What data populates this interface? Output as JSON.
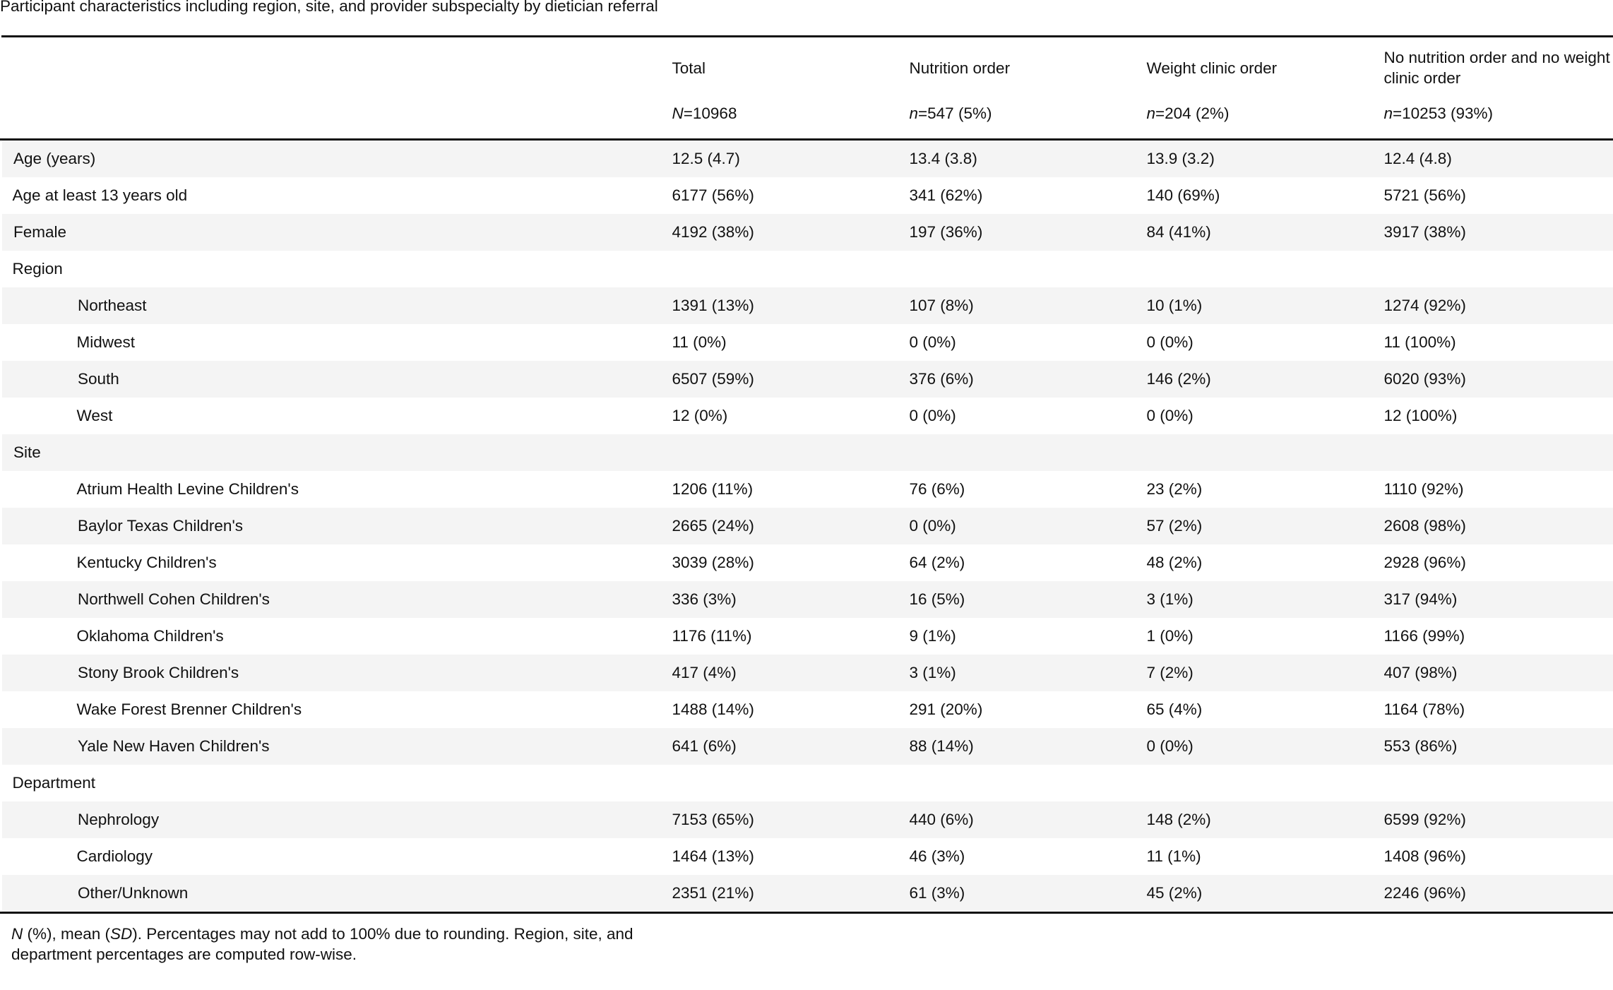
{
  "caption": "Participant characteristics including region, site, and provider subspecialty by dietician referral",
  "columns": [
    {
      "label": "Total",
      "n_prefix": "N",
      "n_value": "=10968"
    },
    {
      "label": "Nutrition order",
      "n_prefix": "n",
      "n_value": "=547 (5%)"
    },
    {
      "label": "Weight clinic order",
      "n_prefix": "n",
      "n_value": "=204 (2%)"
    },
    {
      "label": "No nutrition order and no weight clinic order",
      "n_prefix": "n",
      "n_value": "=10253 (93%)"
    }
  ],
  "rows": [
    {
      "label": "Age (years)",
      "indent": false,
      "values": [
        "12.5 (4.7)",
        "13.4 (3.8)",
        "13.9 (3.2)",
        "12.4 (4.8)"
      ]
    },
    {
      "label": "Age at least 13 years old",
      "indent": false,
      "values": [
        "6177 (56%)",
        "341 (62%)",
        "140 (69%)",
        "5721 (56%)"
      ]
    },
    {
      "label": "Female",
      "indent": false,
      "values": [
        "4192 (38%)",
        "197 (36%)",
        "84 (41%)",
        "3917 (38%)"
      ]
    },
    {
      "label": "Region",
      "indent": false,
      "values": [
        "",
        "",
        "",
        ""
      ]
    },
    {
      "label": "Northeast",
      "indent": true,
      "values": [
        "1391 (13%)",
        "107 (8%)",
        "10 (1%)",
        "1274 (92%)"
      ]
    },
    {
      "label": "Midwest",
      "indent": true,
      "values": [
        "11 (0%)",
        "0 (0%)",
        "0 (0%)",
        "11 (100%)"
      ]
    },
    {
      "label": "South",
      "indent": true,
      "values": [
        "6507 (59%)",
        "376 (6%)",
        "146 (2%)",
        "6020 (93%)"
      ]
    },
    {
      "label": "West",
      "indent": true,
      "values": [
        "12 (0%)",
        "0 (0%)",
        "0 (0%)",
        "12 (100%)"
      ]
    },
    {
      "label": "Site",
      "indent": false,
      "values": [
        "",
        "",
        "",
        ""
      ]
    },
    {
      "label": "Atrium Health Levine Children's",
      "indent": true,
      "values": [
        "1206 (11%)",
        "76 (6%)",
        "23 (2%)",
        "1110 (92%)"
      ]
    },
    {
      "label": "Baylor Texas Children's",
      "indent": true,
      "values": [
        "2665 (24%)",
        "0 (0%)",
        "57 (2%)",
        "2608 (98%)"
      ]
    },
    {
      "label": "Kentucky Children's",
      "indent": true,
      "values": [
        "3039 (28%)",
        "64 (2%)",
        "48 (2%)",
        "2928 (96%)"
      ]
    },
    {
      "label": "Northwell Cohen Children's",
      "indent": true,
      "values": [
        "336 (3%)",
        "16 (5%)",
        "3 (1%)",
        "317 (94%)"
      ]
    },
    {
      "label": "Oklahoma Children's",
      "indent": true,
      "values": [
        "1176 (11%)",
        "9 (1%)",
        "1 (0%)",
        "1166 (99%)"
      ]
    },
    {
      "label": "Stony Brook Children's",
      "indent": true,
      "values": [
        "417 (4%)",
        "3 (1%)",
        "7 (2%)",
        "407 (98%)"
      ]
    },
    {
      "label": "Wake Forest Brenner Children's",
      "indent": true,
      "values": [
        "1488 (14%)",
        "291 (20%)",
        "65 (4%)",
        "1164 (78%)"
      ]
    },
    {
      "label": "Yale New Haven Children's",
      "indent": true,
      "values": [
        "641 (6%)",
        "88 (14%)",
        "0 (0%)",
        "553 (86%)"
      ]
    },
    {
      "label": "Department",
      "indent": false,
      "values": [
        "",
        "",
        "",
        ""
      ]
    },
    {
      "label": "Nephrology",
      "indent": true,
      "values": [
        "7153 (65%)",
        "440 (6%)",
        "148 (2%)",
        "6599 (92%)"
      ]
    },
    {
      "label": "Cardiology",
      "indent": true,
      "values": [
        "1464 (13%)",
        "46 (3%)",
        "11 (1%)",
        "1408 (96%)"
      ]
    },
    {
      "label": "Other/Unknown",
      "indent": true,
      "values": [
        "2351 (21%)",
        "61 (3%)",
        "45 (2%)",
        "2246 (96%)"
      ]
    }
  ],
  "footnote": {
    "n_symbol": "N",
    "part1": " (%), mean (",
    "sd_symbol": "SD",
    "part2": "). Percentages may not add to 100% due to rounding. Region, site, and department percentages are computed row-wise."
  }
}
